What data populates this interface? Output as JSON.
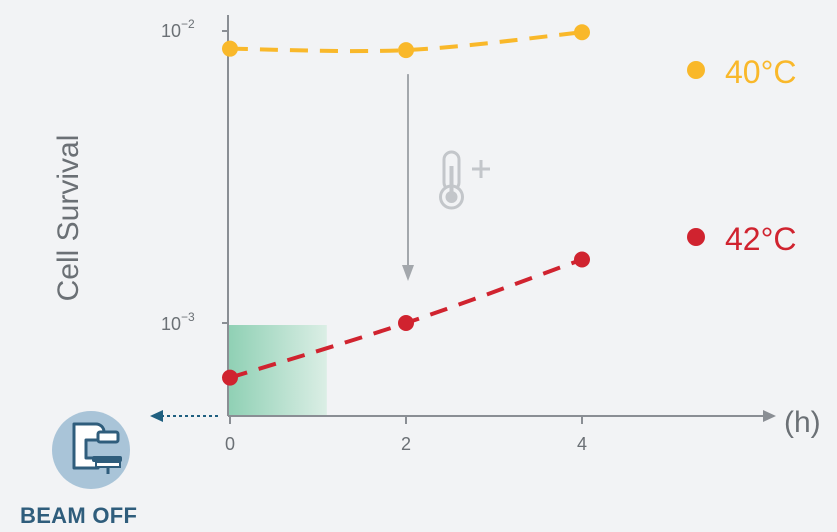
{
  "chart_data": {
    "type": "line",
    "ylabel": "Cell Survival",
    "xunit": "(h)",
    "x_ticks": [
      "0",
      "2",
      "4"
    ],
    "y_ticks": [
      {
        "base": "10",
        "exp": "−2",
        "value": 0.01
      },
      {
        "base": "10",
        "exp": "−3",
        "value": 0.001
      }
    ],
    "xlim": [
      0,
      7
    ],
    "ylim": [
      0.0001,
      0.0111
    ],
    "yscale": "log",
    "grid": false,
    "legend_position": "right",
    "series": [
      {
        "name": "40°C",
        "color": "#f9b82a",
        "style": "dashed",
        "points": [
          [
            0,
            0.0087
          ],
          [
            2,
            0.0086
          ],
          [
            4,
            0.0099
          ]
        ]
      },
      {
        "name": "42°C",
        "color": "#d0232f",
        "style": "dashed",
        "points": [
          [
            0,
            0.00065
          ],
          [
            2,
            0.001
          ],
          [
            4,
            0.00165
          ]
        ]
      }
    ],
    "shaded_region": {
      "x": [
        0,
        1.1
      ],
      "colors": [
        "#8fd0b4",
        "#dbeee5"
      ]
    },
    "annotations": {
      "arrow_from_series": "40°C",
      "arrow_to_series": "42°C",
      "arrow_x": 2
    }
  },
  "beam": {
    "label": "BEAM OFF"
  },
  "icons": {
    "thermometer": "thermometer-plus-icon",
    "machine": "radiotherapy-machine-icon"
  },
  "colors": {
    "axis": "#8a8e94",
    "text": "#6b7075",
    "arrow": "#1f5f80",
    "icon_bg": "#a9c4d8",
    "icon_line": "#2f5d7c"
  }
}
